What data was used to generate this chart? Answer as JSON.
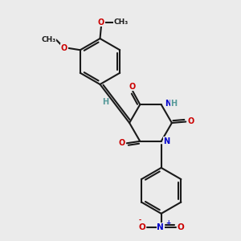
{
  "bg_color": "#ebebeb",
  "bond_color": "#1a1a1a",
  "oxygen_color": "#cc0000",
  "nitrogen_color": "#0000cc",
  "hydrogen_color": "#559999",
  "font_size_atom": 7.0,
  "line_width": 1.5,
  "fig_size": [
    3.0,
    3.0
  ],
  "dpi": 100,
  "xlim": [
    0,
    10
  ],
  "ylim": [
    0,
    10
  ]
}
